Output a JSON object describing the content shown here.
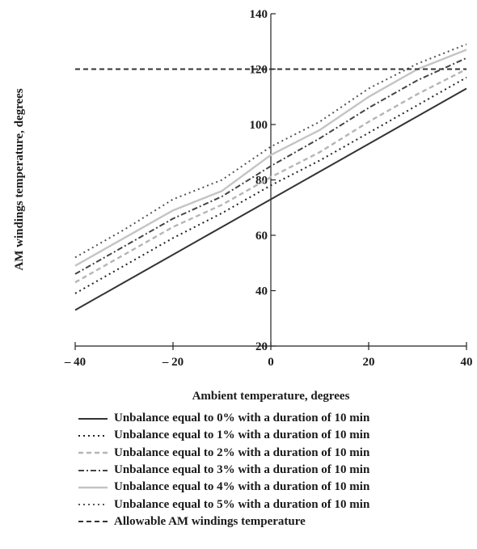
{
  "chart_data": {
    "type": "line",
    "xlabel": "Ambient temperature, degrees",
    "ylabel": "AM windings temperature, degrees",
    "xlim": [
      -40,
      40
    ],
    "ylim": [
      20,
      140
    ],
    "x_ticks": [
      -40,
      -20,
      0,
      20,
      40
    ],
    "x_tick_labels": [
      "– 40",
      "– 20",
      "0",
      "20",
      "40"
    ],
    "y_ticks": [
      20,
      40,
      60,
      80,
      100,
      120,
      140
    ],
    "y_tick_labels": [
      "20",
      "40",
      "60",
      "80",
      "100",
      "120",
      "140"
    ],
    "grid": false,
    "legend_position": "bottom",
    "x": [
      -40,
      -30,
      -20,
      -10,
      0,
      10,
      20,
      30,
      40
    ],
    "series": [
      {
        "name": "Unbalance equal to 0% with a duration of 10 min",
        "color": "#333333",
        "dash": "solid",
        "values": [
          33,
          43,
          53,
          63,
          73,
          83,
          93,
          103,
          113
        ]
      },
      {
        "name": "Unbalance equal to 1% with a duration of 10 min",
        "color": "#222222",
        "dash": "dot",
        "values": [
          39,
          49,
          59,
          68,
          78,
          87,
          97,
          107,
          117
        ]
      },
      {
        "name": "Unbalance equal to 2% with a duration of 10 min",
        "color": "#b5b5b5",
        "dash": "dash",
        "values": [
          43,
          53,
          63,
          71,
          81,
          90,
          101,
          111,
          120
        ]
      },
      {
        "name": "Unbalance equal to 3% with a duration of 10 min",
        "color": "#444444",
        "dash": "dashdot",
        "values": [
          46,
          56,
          66,
          74,
          85,
          95,
          106,
          116,
          124
        ]
      },
      {
        "name": "Unbalance equal to 4% with a duration of 10 min",
        "color": "#c4c4c4",
        "dash": "solid",
        "values": [
          49,
          59,
          69,
          76,
          89,
          98,
          110,
          120,
          127
        ]
      },
      {
        "name": "Unbalance equal to 5% with a duration of 10 min",
        "color": "#555555",
        "dash": "dot",
        "values": [
          52,
          62,
          73,
          80,
          92,
          101,
          113,
          122,
          129
        ]
      },
      {
        "name": "Allowable AM windings temperature",
        "color": "#333333",
        "dash": "dash",
        "values": [
          120,
          120,
          120,
          120,
          120,
          120,
          120,
          120,
          120
        ]
      }
    ]
  }
}
